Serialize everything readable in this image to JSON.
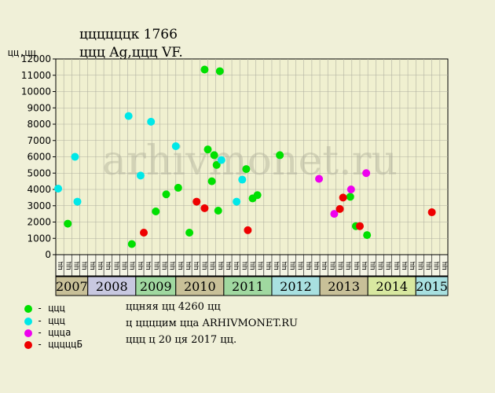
{
  "header": {
    "title_line1": "ццццццк 1766",
    "title_line2": "ццц Ag,ццц VF.",
    "y_unit": "цц,цц"
  },
  "watermark": "arhivmonet.ru",
  "legend": [
    {
      "label": "- ццц",
      "color": "#00e000"
    },
    {
      "label": "- ццц",
      "color": "#00e8e8"
    },
    {
      "label": "- цццa",
      "color": "#ee00ee"
    },
    {
      "label": "- цццццБ",
      "color": "#ee0000"
    }
  ],
  "notes": [
    "ццняя цц 4260 цц",
    "ц ццццим цца ARHIVMONET.RU",
    "ццц ц 20 ця 2017 цц."
  ],
  "colors": {
    "plot_bg": "#f0f0d0",
    "grid": "#b0b0a0",
    "green": "#00e000",
    "cyan": "#00e8e8",
    "magenta": "#ee00ee",
    "red": "#ee0000"
  },
  "chart_data": {
    "type": "scatter",
    "ylim": [
      0,
      12000
    ],
    "yticks": [
      0,
      1000,
      2000,
      3000,
      4000,
      5000,
      6000,
      7000,
      8000,
      9000,
      10000,
      11000,
      12000
    ],
    "x_label": "цц",
    "x_slots": 49,
    "years": [
      {
        "label": "2007",
        "start": 0,
        "end": 4,
        "color": "#c8c098"
      },
      {
        "label": "2008",
        "start": 4,
        "end": 10,
        "color": "#c8c8e0"
      },
      {
        "label": "2009",
        "start": 10,
        "end": 15,
        "color": "#a0d8a0"
      },
      {
        "label": "2010",
        "start": 15,
        "end": 21,
        "color": "#c8c098"
      },
      {
        "label": "2011",
        "start": 21,
        "end": 27,
        "color": "#a0d8a0"
      },
      {
        "label": "2012",
        "start": 27,
        "end": 33,
        "color": "#a8e0e0"
      },
      {
        "label": "2013",
        "start": 33,
        "end": 39,
        "color": "#c8c098"
      },
      {
        "label": "2014",
        "start": 39,
        "end": 45,
        "color": "#d8e8a0"
      },
      {
        "label": "2015",
        "start": 45,
        "end": 49,
        "color": "#a8e0e0"
      }
    ],
    "series": [
      {
        "color_key": "green",
        "points": [
          [
            1.5,
            1900
          ],
          [
            9.5,
            650
          ],
          [
            12.5,
            2650
          ],
          [
            13.8,
            3700
          ],
          [
            15.3,
            4100
          ],
          [
            16.7,
            1350
          ],
          [
            18.6,
            11350
          ],
          [
            19.0,
            6450
          ],
          [
            19.5,
            4500
          ],
          [
            19.8,
            6100
          ],
          [
            20.1,
            5500
          ],
          [
            20.3,
            2700
          ],
          [
            20.5,
            11250
          ],
          [
            23.8,
            5250
          ],
          [
            24.6,
            3450
          ],
          [
            25.2,
            3650
          ],
          [
            28.0,
            6100
          ],
          [
            36.8,
            3550
          ],
          [
            37.5,
            1750
          ],
          [
            38.9,
            1200
          ]
        ]
      },
      {
        "color_key": "cyan",
        "points": [
          [
            0.3,
            4050
          ],
          [
            2.4,
            6000
          ],
          [
            2.7,
            3250
          ],
          [
            9.1,
            8500
          ],
          [
            10.6,
            4850
          ],
          [
            11.9,
            8150
          ],
          [
            15.0,
            6650
          ],
          [
            20.7,
            5800
          ],
          [
            22.6,
            3250
          ],
          [
            23.3,
            4600
          ]
        ]
      },
      {
        "color_key": "magenta",
        "points": [
          [
            32.9,
            4650
          ],
          [
            34.8,
            2500
          ],
          [
            36.9,
            4000
          ],
          [
            38.8,
            5000
          ]
        ]
      },
      {
        "color_key": "red",
        "points": [
          [
            11.0,
            1350
          ],
          [
            17.6,
            3250
          ],
          [
            18.6,
            2850
          ],
          [
            24.0,
            1500
          ],
          [
            35.5,
            2800
          ],
          [
            35.9,
            3500
          ],
          [
            38.0,
            1750
          ],
          [
            47.0,
            2600
          ]
        ]
      }
    ]
  }
}
